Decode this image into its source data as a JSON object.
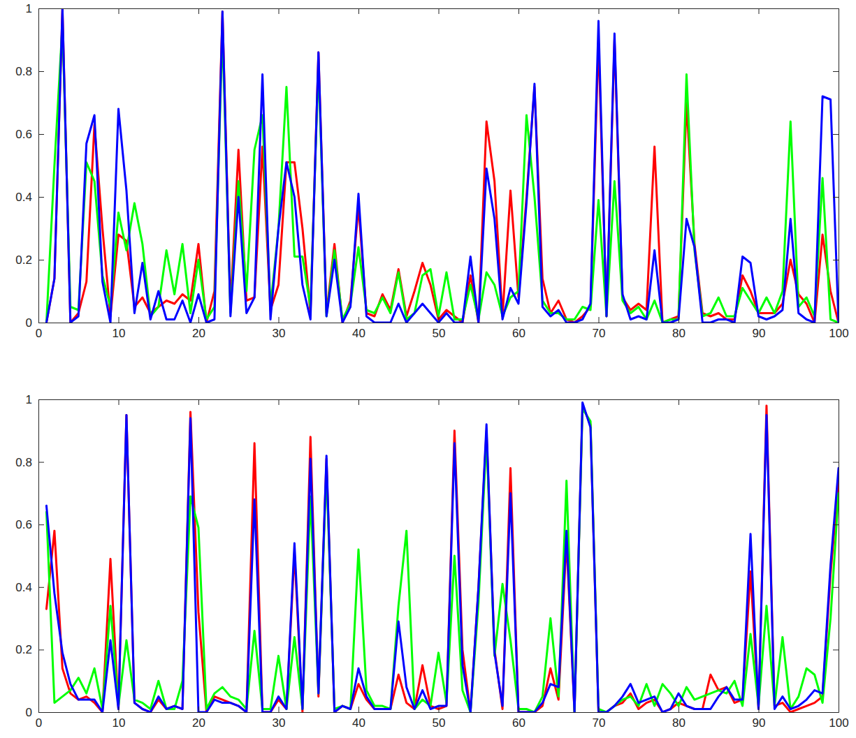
{
  "chart_data": [
    {
      "type": "line",
      "x": [
        1,
        2,
        3,
        4,
        5,
        6,
        7,
        8,
        9,
        10,
        11,
        12,
        13,
        14,
        15,
        16,
        17,
        18,
        19,
        20,
        21,
        22,
        23,
        24,
        25,
        26,
        27,
        28,
        29,
        30,
        31,
        32,
        33,
        34,
        35,
        36,
        37,
        38,
        39,
        40,
        41,
        42,
        43,
        44,
        45,
        46,
        47,
        48,
        49,
        50,
        51,
        52,
        53,
        54,
        55,
        56,
        57,
        58,
        59,
        60,
        61,
        62,
        63,
        64,
        65,
        66,
        67,
        68,
        69,
        70,
        71,
        72,
        73,
        74,
        75,
        76,
        77,
        78,
        79,
        80,
        81,
        82,
        83,
        84,
        85,
        86,
        87,
        88,
        89,
        90,
        91,
        92,
        93,
        94,
        95,
        96,
        97,
        98,
        99,
        100
      ],
      "xlim": [
        0,
        100
      ],
      "xticks": [
        0,
        10,
        20,
        30,
        40,
        50,
        60,
        70,
        80,
        90,
        100
      ],
      "ylim": [
        0,
        1
      ],
      "yticks": [
        0,
        0.2,
        0.4,
        0.6,
        0.8,
        1
      ],
      "series": [
        {
          "color": "#ff0000",
          "values": [
            0,
            0.14,
            1.0,
            0,
            0.03,
            0.13,
            0.63,
            0.3,
            0.02,
            0.28,
            0.26,
            0.05,
            0.08,
            0.03,
            0.05,
            0.07,
            0.06,
            0.09,
            0.07,
            0.25,
            0,
            0.1,
            0.99,
            0.05,
            0.55,
            0.07,
            0.08,
            0.56,
            0.04,
            0.12,
            0.51,
            0.51,
            0.3,
            0.03,
            0.86,
            0.03,
            0.25,
            0,
            0.07,
            0.37,
            0.03,
            0.02,
            0.09,
            0.04,
            0.17,
            0.02,
            0.1,
            0.19,
            0.12,
            0.01,
            0.04,
            0.02,
            0,
            0.15,
            0,
            0.64,
            0.45,
            0.02,
            0.42,
            0.08,
            0.4,
            0.75,
            0.14,
            0.03,
            0.07,
            0.01,
            0,
            0.02,
            0.05,
            0.9,
            0.02,
            0.9,
            0.08,
            0.04,
            0.06,
            0.04,
            0.56,
            0,
            0.01,
            0.02,
            0.7,
            0.25,
            0.03,
            0.02,
            0.03,
            0.01,
            0.01,
            0.15,
            0.1,
            0.03,
            0.03,
            0.03,
            0.06,
            0.2,
            0.09,
            0.06,
            0,
            0.28,
            0.1,
            0
          ]
        },
        {
          "color": "#00ff00",
          "values": [
            0,
            0.5,
            0.95,
            0.05,
            0.04,
            0.51,
            0.45,
            0.15,
            0.05,
            0.35,
            0.23,
            0.38,
            0.25,
            0.02,
            0.05,
            0.23,
            0.09,
            0.25,
            0.03,
            0.2,
            0.01,
            0.05,
            0.93,
            0.03,
            0.45,
            0.1,
            0.55,
            0.66,
            0.05,
            0.3,
            0.75,
            0.21,
            0.21,
            0.05,
            0.82,
            0.02,
            0.23,
            0.01,
            0.06,
            0.24,
            0.04,
            0.03,
            0.08,
            0.03,
            0.16,
            0.01,
            0.03,
            0.15,
            0.17,
            0.02,
            0.16,
            0.01,
            0.01,
            0.12,
            0.01,
            0.16,
            0.12,
            0.02,
            0.08,
            0.1,
            0.66,
            0.4,
            0.07,
            0.03,
            0.03,
            0.01,
            0.01,
            0.05,
            0.04,
            0.39,
            0.02,
            0.45,
            0.07,
            0.03,
            0.05,
            0.01,
            0.07,
            0,
            0.01,
            0.01,
            0.79,
            0.23,
            0.02,
            0.03,
            0.08,
            0.02,
            0.02,
            0.11,
            0.07,
            0.03,
            0.08,
            0.03,
            0.1,
            0.64,
            0.05,
            0.08,
            0.02,
            0.46,
            0.01,
            0
          ]
        },
        {
          "color": "#0000ff",
          "values": [
            0,
            0.14,
            1.0,
            0,
            0.02,
            0.57,
            0.66,
            0.13,
            0,
            0.68,
            0.42,
            0.03,
            0.19,
            0.01,
            0.1,
            0.01,
            0.01,
            0.07,
            0,
            0.09,
            0,
            0.01,
            0.99,
            0.02,
            0.4,
            0.03,
            0.08,
            0.79,
            0.01,
            0.3,
            0.51,
            0.4,
            0.12,
            0.01,
            0.86,
            0.02,
            0.2,
            0,
            0.05,
            0.41,
            0.02,
            0,
            0,
            0,
            0.06,
            0,
            0.03,
            0.06,
            0.03,
            0,
            0.03,
            0,
            0,
            0.21,
            0,
            0.49,
            0.33,
            0.01,
            0.11,
            0.06,
            0.38,
            0.76,
            0.05,
            0.02,
            0.04,
            0,
            0,
            0.01,
            0.06,
            0.96,
            0.02,
            0.92,
            0.09,
            0.01,
            0.02,
            0.01,
            0.23,
            0,
            0,
            0.01,
            0.33,
            0.24,
            0,
            0,
            0.01,
            0.01,
            0,
            0.21,
            0.19,
            0.02,
            0.01,
            0.02,
            0.04,
            0.33,
            0.03,
            0.01,
            0,
            0.72,
            0.71,
            0
          ]
        }
      ]
    },
    {
      "type": "line",
      "x": [
        1,
        2,
        3,
        4,
        5,
        6,
        7,
        8,
        9,
        10,
        11,
        12,
        13,
        14,
        15,
        16,
        17,
        18,
        19,
        20,
        21,
        22,
        23,
        24,
        25,
        26,
        27,
        28,
        29,
        30,
        31,
        32,
        33,
        34,
        35,
        36,
        37,
        38,
        39,
        40,
        41,
        42,
        43,
        44,
        45,
        46,
        47,
        48,
        49,
        50,
        51,
        52,
        53,
        54,
        55,
        56,
        57,
        58,
        59,
        60,
        61,
        62,
        63,
        64,
        65,
        66,
        67,
        68,
        69,
        70,
        71,
        72,
        73,
        74,
        75,
        76,
        77,
        78,
        79,
        80,
        81,
        82,
        83,
        84,
        85,
        86,
        87,
        88,
        89,
        90,
        91,
        92,
        93,
        94,
        95,
        96,
        97,
        98,
        99,
        100
      ],
      "xlim": [
        0,
        100
      ],
      "xticks": [
        0,
        10,
        20,
        30,
        40,
        50,
        60,
        70,
        80,
        90,
        100
      ],
      "ylim": [
        0,
        1
      ],
      "yticks": [
        0,
        0.2,
        0.4,
        0.6,
        0.8,
        1
      ],
      "series": [
        {
          "color": "#ff0000",
          "values": [
            0.33,
            0.58,
            0.14,
            0.06,
            0.04,
            0.05,
            0.03,
            0,
            0.49,
            0.01,
            0.95,
            0.03,
            0.01,
            0,
            0.04,
            0.01,
            0.02,
            0.01,
            0.96,
            0.32,
            0,
            0.05,
            0.04,
            0.03,
            0.02,
            0,
            0.86,
            0,
            0,
            0.04,
            0.01,
            0.51,
            0,
            0.88,
            0.05,
            0.81,
            0,
            0.02,
            0.01,
            0.09,
            0.04,
            0.01,
            0.01,
            0.01,
            0.12,
            0.03,
            0.01,
            0.15,
            0.02,
            0.01,
            0.02,
            0.9,
            0.2,
            0,
            0.4,
            0.9,
            0.2,
            0.01,
            0.78,
            0,
            0,
            0,
            0.02,
            0.14,
            0.04,
            0.55,
            0,
            0.98,
            0.92,
            0,
            0,
            0.02,
            0.03,
            0.06,
            0.01,
            0.03,
            0.04,
            0,
            0.01,
            0.03,
            0.02,
            0.01,
            0.01,
            0.12,
            0.07,
            0.08,
            0.03,
            0.04,
            0.45,
            0.01,
            0.98,
            0.02,
            0.03,
            0,
            0.01,
            0.02,
            0.03,
            0.05,
            0.44,
            0.74
          ]
        },
        {
          "color": "#00ff00",
          "values": [
            0.64,
            0.03,
            0.05,
            0.07,
            0.11,
            0.06,
            0.14,
            0.01,
            0.34,
            0.02,
            0.23,
            0.04,
            0.03,
            0.01,
            0.1,
            0.01,
            0.01,
            0.1,
            0.69,
            0.59,
            0.01,
            0.06,
            0.08,
            0.05,
            0.04,
            0.01,
            0.26,
            0.01,
            0.01,
            0.18,
            0.01,
            0.24,
            0.01,
            0.69,
            0.06,
            0.78,
            0.01,
            0.02,
            0.01,
            0.52,
            0.07,
            0.02,
            0.02,
            0.01,
            0.34,
            0.58,
            0.01,
            0.04,
            0.02,
            0.19,
            0.03,
            0.5,
            0.07,
            0,
            0.35,
            0.88,
            0.18,
            0.41,
            0.23,
            0.01,
            0.01,
            0,
            0.05,
            0.3,
            0.05,
            0.74,
            0,
            0.97,
            0.93,
            0.01,
            0,
            0.02,
            0.04,
            0.05,
            0.02,
            0.09,
            0.02,
            0.09,
            0.06,
            0.02,
            0.08,
            0.04,
            0.05,
            0.06,
            0.07,
            0.06,
            0.1,
            0.02,
            0.25,
            0.02,
            0.34,
            0.02,
            0.24,
            0.01,
            0.05,
            0.14,
            0.12,
            0.03,
            0.3,
            0.7
          ]
        },
        {
          "color": "#0000ff",
          "values": [
            0.66,
            0.38,
            0.19,
            0.09,
            0.04,
            0.04,
            0.04,
            0,
            0.23,
            0.01,
            0.95,
            0.03,
            0.01,
            0,
            0.05,
            0.01,
            0.02,
            0.01,
            0.94,
            0,
            0,
            0.04,
            0.03,
            0.03,
            0.02,
            0,
            0.68,
            0,
            0,
            0.05,
            0.01,
            0.54,
            0.01,
            0.81,
            0.06,
            0.82,
            0,
            0.02,
            0.01,
            0.14,
            0.05,
            0.01,
            0.01,
            0.01,
            0.29,
            0.08,
            0.01,
            0.07,
            0.01,
            0.02,
            0.02,
            0.86,
            0.15,
            0,
            0.4,
            0.92,
            0.19,
            0.02,
            0.7,
            0,
            0,
            0,
            0.03,
            0.09,
            0.08,
            0.58,
            0,
            0.99,
            0.91,
            0,
            0,
            0.02,
            0.05,
            0.09,
            0.03,
            0.04,
            0.05,
            0,
            0.01,
            0.06,
            0.02,
            0.01,
            0.01,
            0.01,
            0.05,
            0.08,
            0.04,
            0.04,
            0.57,
            0.01,
            0.95,
            0.01,
            0.05,
            0.01,
            0.02,
            0.04,
            0.07,
            0.06,
            0.47,
            0.78
          ]
        }
      ]
    }
  ]
}
